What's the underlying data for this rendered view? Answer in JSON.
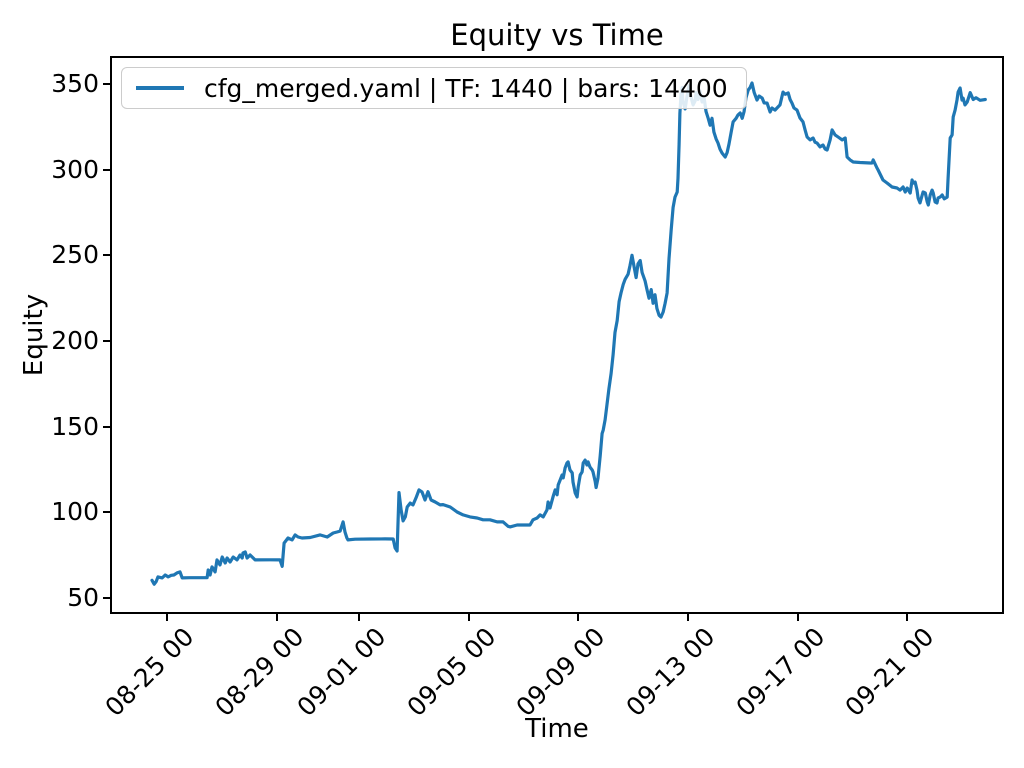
{
  "figure": {
    "background": "#ffffff"
  },
  "chart_data": {
    "type": "line",
    "title": "Equity vs Time",
    "xlabel": "Time",
    "ylabel": "Equity",
    "grid": false,
    "legend_position": "upper left",
    "legend_entries": [
      {
        "label": "cfg_merged.yaml | TF: 1440 | bars: 14400",
        "color": "#1f77b4"
      }
    ],
    "line_color": "#1f77b4",
    "axis_color": "#000000",
    "legend_border_color": "#cccccc",
    "x_unit": "days since 08-24 00:00",
    "xlim": [
      -1.01,
      31.46
    ],
    "ylim": [
      41.8,
      365.2
    ],
    "x_ticks": [
      {
        "t": 1,
        "label": "08-25 00"
      },
      {
        "t": 5,
        "label": "08-29 00"
      },
      {
        "t": 8,
        "label": "09-01 00"
      },
      {
        "t": 12,
        "label": "09-05 00"
      },
      {
        "t": 16,
        "label": "09-09 00"
      },
      {
        "t": 20,
        "label": "09-13 00"
      },
      {
        "t": 24,
        "label": "09-17 00"
      },
      {
        "t": 28,
        "label": "09-21 00"
      }
    ],
    "y_ticks": [
      50,
      100,
      150,
      200,
      250,
      300,
      350
    ],
    "series": [
      {
        "name": "cfg_merged.yaml | TF: 1440 | bars: 14400",
        "points": [
          [
            0.45,
            60.3
          ],
          [
            0.53,
            58.0
          ],
          [
            0.6,
            59.5
          ],
          [
            0.67,
            62.3
          ],
          [
            0.82,
            61.7
          ],
          [
            0.93,
            63.4
          ],
          [
            1.04,
            62.3
          ],
          [
            1.15,
            63.2
          ],
          [
            1.25,
            63.4
          ],
          [
            1.36,
            64.6
          ],
          [
            1.47,
            65.2
          ],
          [
            1.55,
            61.7
          ],
          [
            1.84,
            61.8
          ],
          [
            2.2,
            61.8
          ],
          [
            2.46,
            61.8
          ],
          [
            2.5,
            66.3
          ],
          [
            2.57,
            63.4
          ],
          [
            2.64,
            68.1
          ],
          [
            2.75,
            65.2
          ],
          [
            2.82,
            72.2
          ],
          [
            2.93,
            69.3
          ],
          [
            3.01,
            73.9
          ],
          [
            3.12,
            70.4
          ],
          [
            3.19,
            73.3
          ],
          [
            3.3,
            71.0
          ],
          [
            3.41,
            73.9
          ],
          [
            3.55,
            72.2
          ],
          [
            3.66,
            75.1
          ],
          [
            3.74,
            73.3
          ],
          [
            3.77,
            76.3
          ],
          [
            3.85,
            76.9
          ],
          [
            3.92,
            73.3
          ],
          [
            4.03,
            75.1
          ],
          [
            4.14,
            73.3
          ],
          [
            4.21,
            72.2
          ],
          [
            4.76,
            72.3
          ],
          [
            5.12,
            72.2
          ],
          [
            5.2,
            68.5
          ],
          [
            5.27,
            82.0
          ],
          [
            5.41,
            85.0
          ],
          [
            5.56,
            83.9
          ],
          [
            5.67,
            86.8
          ],
          [
            5.78,
            85.6
          ],
          [
            5.92,
            85.0
          ],
          [
            6.22,
            85.3
          ],
          [
            6.58,
            86.8
          ],
          [
            6.84,
            85.6
          ],
          [
            7.06,
            87.9
          ],
          [
            7.2,
            88.5
          ],
          [
            7.31,
            89.0
          ],
          [
            7.42,
            94.4
          ],
          [
            7.49,
            88.5
          ],
          [
            7.56,
            85.0
          ],
          [
            7.6,
            83.9
          ],
          [
            7.86,
            84.3
          ],
          [
            8.41,
            84.4
          ],
          [
            8.95,
            84.5
          ],
          [
            9.25,
            84.4
          ],
          [
            9.32,
            79.2
          ],
          [
            9.39,
            77.4
          ],
          [
            9.46,
            111.5
          ],
          [
            9.54,
            101.0
          ],
          [
            9.61,
            95.0
          ],
          [
            9.69,
            97.3
          ],
          [
            9.76,
            103.1
          ],
          [
            9.87,
            105.4
          ],
          [
            9.97,
            104.3
          ],
          [
            10.08,
            108.4
          ],
          [
            10.19,
            113.1
          ],
          [
            10.3,
            111.9
          ],
          [
            10.41,
            107.2
          ],
          [
            10.52,
            112.0
          ],
          [
            10.63,
            107.2
          ],
          [
            10.78,
            106.0
          ],
          [
            10.96,
            104.3
          ],
          [
            11.07,
            104.5
          ],
          [
            11.33,
            103.1
          ],
          [
            11.58,
            100.2
          ],
          [
            11.8,
            98.5
          ],
          [
            12.05,
            97.3
          ],
          [
            12.31,
            96.7
          ],
          [
            12.53,
            95.6
          ],
          [
            12.78,
            95.6
          ],
          [
            13.04,
            94.4
          ],
          [
            13.26,
            94.4
          ],
          [
            13.44,
            91.8
          ],
          [
            13.51,
            91.5
          ],
          [
            13.77,
            92.6
          ],
          [
            13.99,
            92.6
          ],
          [
            14.24,
            92.6
          ],
          [
            14.35,
            95.6
          ],
          [
            14.5,
            96.7
          ],
          [
            14.61,
            98.5
          ],
          [
            14.72,
            97.3
          ],
          [
            14.86,
            101.4
          ],
          [
            14.9,
            106.0
          ],
          [
            14.97,
            102.5
          ],
          [
            15.08,
            109.0
          ],
          [
            15.16,
            113.1
          ],
          [
            15.23,
            110.2
          ],
          [
            15.27,
            116.0
          ],
          [
            15.34,
            118.9
          ],
          [
            15.41,
            121.8
          ],
          [
            15.45,
            120.1
          ],
          [
            15.52,
            125.9
          ],
          [
            15.59,
            128.8
          ],
          [
            15.63,
            129.4
          ],
          [
            15.7,
            124.7
          ],
          [
            15.78,
            123.0
          ],
          [
            15.81,
            117.7
          ],
          [
            15.89,
            111.3
          ],
          [
            15.96,
            109.0
          ],
          [
            16.0,
            114.8
          ],
          [
            16.07,
            121.8
          ],
          [
            16.14,
            123.6
          ],
          [
            16.18,
            128.8
          ],
          [
            16.25,
            130.5
          ],
          [
            16.32,
            127.6
          ],
          [
            16.36,
            129.4
          ],
          [
            16.43,
            126.4
          ],
          [
            16.51,
            124.7
          ],
          [
            16.54,
            123.6
          ],
          [
            16.62,
            118.0
          ],
          [
            16.65,
            114.5
          ],
          [
            16.72,
            120.0
          ],
          [
            16.8,
            133.0
          ],
          [
            16.87,
            146.0
          ],
          [
            16.91,
            148.0
          ],
          [
            16.98,
            154.0
          ],
          [
            17.05,
            163.0
          ],
          [
            17.12,
            172.0
          ],
          [
            17.2,
            181.0
          ],
          [
            17.27,
            192.0
          ],
          [
            17.34,
            205.0
          ],
          [
            17.42,
            212.0
          ],
          [
            17.49,
            223.0
          ],
          [
            17.56,
            228.0
          ],
          [
            17.64,
            233.0
          ],
          [
            17.71,
            236.0
          ],
          [
            17.82,
            239.0
          ],
          [
            17.89,
            244.0
          ],
          [
            17.96,
            250.0
          ],
          [
            18.04,
            243.0
          ],
          [
            18.11,
            237.0
          ],
          [
            18.18,
            245.0
          ],
          [
            18.26,
            247.0
          ],
          [
            18.33,
            240.0
          ],
          [
            18.44,
            235.0
          ],
          [
            18.51,
            230.0
          ],
          [
            18.58,
            225.0
          ],
          [
            18.66,
            230.0
          ],
          [
            18.73,
            222.0
          ],
          [
            18.8,
            227.0
          ],
          [
            18.87,
            219.0
          ],
          [
            18.95,
            215.0
          ],
          [
            19.02,
            214.0
          ],
          [
            19.1,
            217.0
          ],
          [
            19.17,
            222.0
          ],
          [
            19.24,
            228.0
          ],
          [
            19.31,
            248.0
          ],
          [
            19.39,
            265.0
          ],
          [
            19.46,
            278.0
          ],
          [
            19.53,
            284.0
          ],
          [
            19.61,
            287.0
          ],
          [
            19.64,
            295.0
          ],
          [
            19.68,
            315.0
          ],
          [
            19.71,
            333.0
          ],
          [
            19.75,
            344.0
          ],
          [
            19.79,
            348.0
          ],
          [
            19.82,
            340.0
          ],
          [
            19.9,
            335.5
          ],
          [
            19.97,
            343.0
          ],
          [
            20.04,
            349.0
          ],
          [
            20.12,
            342.0
          ],
          [
            20.19,
            337.8
          ],
          [
            20.26,
            340.0
          ],
          [
            20.3,
            345.0
          ],
          [
            20.37,
            341.0
          ],
          [
            20.44,
            346.0
          ],
          [
            20.52,
            339.5
          ],
          [
            20.59,
            342.0
          ],
          [
            20.66,
            334.0
          ],
          [
            20.74,
            330.0
          ],
          [
            20.81,
            326.0
          ],
          [
            20.88,
            330.0
          ],
          [
            20.95,
            322.0
          ],
          [
            21.03,
            318.0
          ],
          [
            21.1,
            315.6
          ],
          [
            21.17,
            312.0
          ],
          [
            21.25,
            309.7
          ],
          [
            21.36,
            307.4
          ],
          [
            21.43,
            310.0
          ],
          [
            21.5,
            315.0
          ],
          [
            21.58,
            322.0
          ],
          [
            21.65,
            327.9
          ],
          [
            21.76,
            330.0
          ],
          [
            21.83,
            332.0
          ],
          [
            21.91,
            333.1
          ],
          [
            21.98,
            330.0
          ],
          [
            22.05,
            334.0
          ],
          [
            22.12,
            342.0
          ],
          [
            22.2,
            346.5
          ],
          [
            22.27,
            348.0
          ],
          [
            22.34,
            350.6
          ],
          [
            22.42,
            345.0
          ],
          [
            22.52,
            340.7
          ],
          [
            22.6,
            343.0
          ],
          [
            22.71,
            341.8
          ],
          [
            22.78,
            339.0
          ],
          [
            22.89,
            338.9
          ],
          [
            23.0,
            333.7
          ],
          [
            23.07,
            336.0
          ],
          [
            23.18,
            334.8
          ],
          [
            23.25,
            336.0
          ],
          [
            23.36,
            337.8
          ],
          [
            23.47,
            345.3
          ],
          [
            23.55,
            344.0
          ],
          [
            23.66,
            344.8
          ],
          [
            23.73,
            341.0
          ],
          [
            23.8,
            338.9
          ],
          [
            23.87,
            336.0
          ],
          [
            23.98,
            334.8
          ],
          [
            24.09,
            330.2
          ],
          [
            24.2,
            327.9
          ],
          [
            24.28,
            323.0
          ],
          [
            24.35,
            319.1
          ],
          [
            24.46,
            317.4
          ],
          [
            24.57,
            318.5
          ],
          [
            24.64,
            316.0
          ],
          [
            24.71,
            315.6
          ],
          [
            24.82,
            313.3
          ],
          [
            24.93,
            314.4
          ],
          [
            25.01,
            312.0
          ],
          [
            25.08,
            311.5
          ],
          [
            25.19,
            317.4
          ],
          [
            25.26,
            323.2
          ],
          [
            25.37,
            320.3
          ],
          [
            25.48,
            319.1
          ],
          [
            25.63,
            317.4
          ],
          [
            25.74,
            318.5
          ],
          [
            25.81,
            307.4
          ],
          [
            25.92,
            305.7
          ],
          [
            26.03,
            304.5
          ],
          [
            26.28,
            304.2
          ],
          [
            26.65,
            303.9
          ],
          [
            26.72,
            303.9
          ],
          [
            26.76,
            305.7
          ],
          [
            26.9,
            301.0
          ],
          [
            26.94,
            299.8
          ],
          [
            27.12,
            294.0
          ],
          [
            27.27,
            292.2
          ],
          [
            27.45,
            289.9
          ],
          [
            27.63,
            289.3
          ],
          [
            27.74,
            288.1
          ],
          [
            27.85,
            289.9
          ],
          [
            27.93,
            287.0
          ],
          [
            28.0,
            289.3
          ],
          [
            28.11,
            286.4
          ],
          [
            28.18,
            294.0
          ],
          [
            28.22,
            292.2
          ],
          [
            28.29,
            292.8
          ],
          [
            28.36,
            288.1
          ],
          [
            28.4,
            283.5
          ],
          [
            28.47,
            280.6
          ],
          [
            28.55,
            285.2
          ],
          [
            28.58,
            287.0
          ],
          [
            28.66,
            286.4
          ],
          [
            28.73,
            281.2
          ],
          [
            28.77,
            279.4
          ],
          [
            28.84,
            285.2
          ],
          [
            28.91,
            288.1
          ],
          [
            28.95,
            286.4
          ],
          [
            29.02,
            281.2
          ],
          [
            29.09,
            280.6
          ],
          [
            29.13,
            283.5
          ],
          [
            29.2,
            284.0
          ],
          [
            29.28,
            285.2
          ],
          [
            29.35,
            283.0
          ],
          [
            29.46,
            284.0
          ],
          [
            29.49,
            294.0
          ],
          [
            29.57,
            318.5
          ],
          [
            29.64,
            320.3
          ],
          [
            29.68,
            330.8
          ],
          [
            29.75,
            334.8
          ],
          [
            29.82,
            340.7
          ],
          [
            29.86,
            345.3
          ],
          [
            29.93,
            347.7
          ],
          [
            30.0,
            340.7
          ],
          [
            30.04,
            341.8
          ],
          [
            30.11,
            337.8
          ],
          [
            30.19,
            339.5
          ],
          [
            30.3,
            345.0
          ],
          [
            30.41,
            341.0
          ],
          [
            30.51,
            342.0
          ],
          [
            30.66,
            340.5
          ],
          [
            30.85,
            341.0
          ]
        ]
      }
    ]
  }
}
